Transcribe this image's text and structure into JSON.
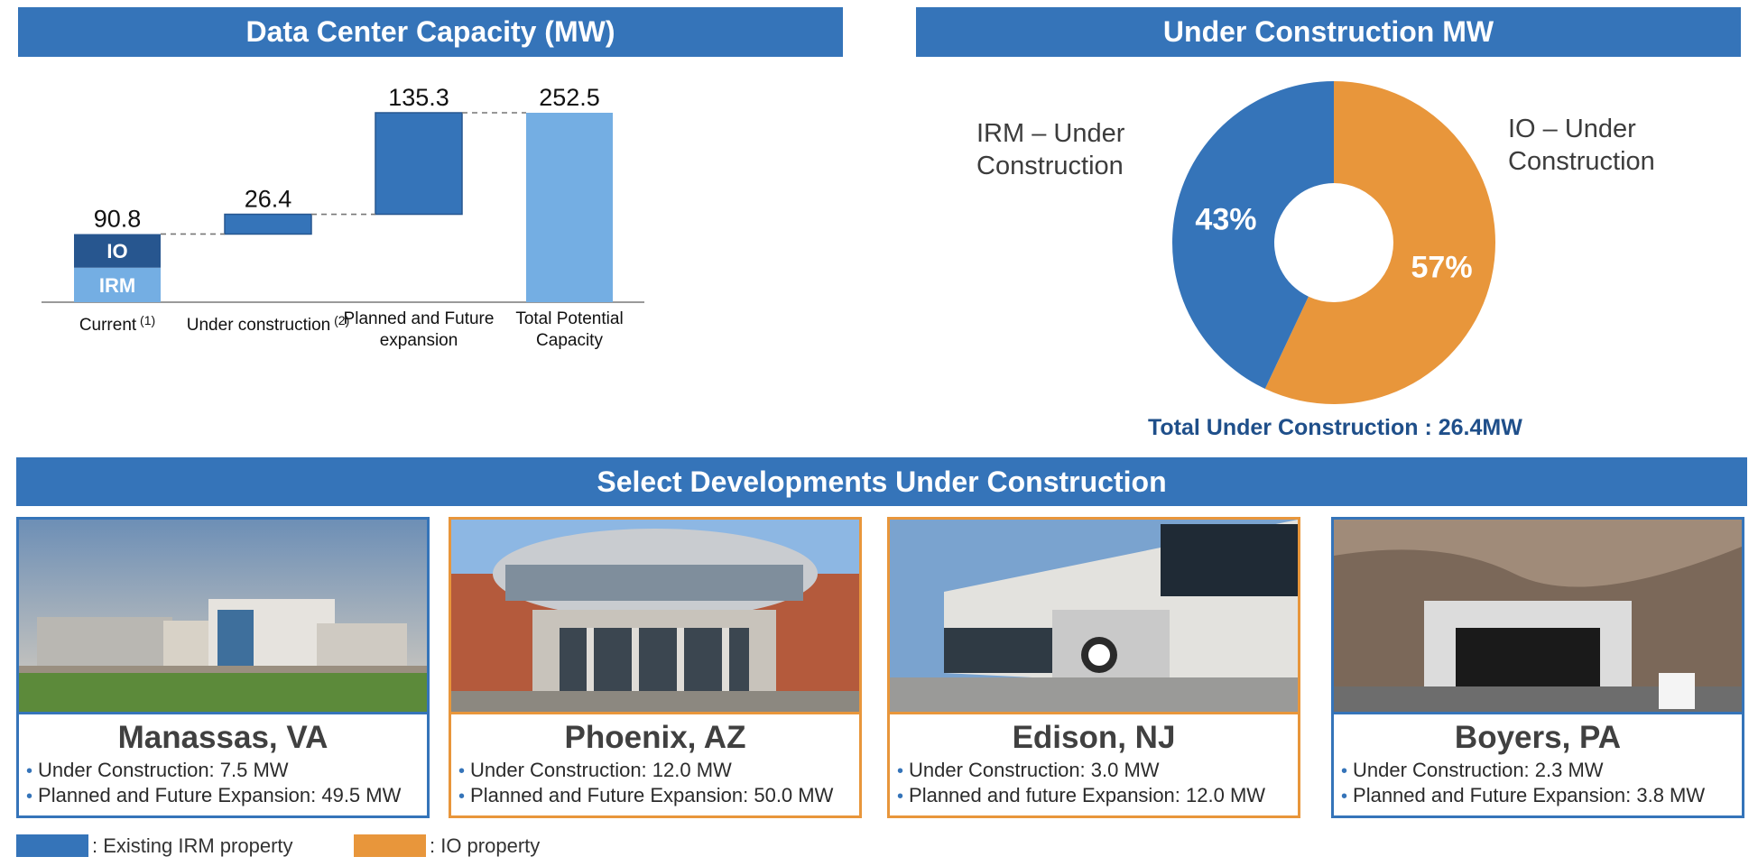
{
  "left_panel": {
    "title": "Data Center Capacity (MW)"
  },
  "right_panel": {
    "title": "Under Construction MW",
    "irm_label_1": "IRM – Under",
    "irm_label_2": "Construction",
    "io_label_1": "IO – Under",
    "io_label_2": "Construction",
    "total": "Total Under Construction : 26.4MW"
  },
  "developments": {
    "title": "Select Developments Under Construction",
    "cards": [
      {
        "city": "Manassas, VA",
        "owner": "IRM",
        "line1": "Under Construction: 7.5 MW",
        "line2": "Planned and Future Expansion: 49.5 MW"
      },
      {
        "city": "Phoenix, AZ",
        "owner": "IO",
        "line1": "Under Construction: 12.0 MW",
        "line2": "Planned and Future Expansion: 50.0 MW"
      },
      {
        "city": "Edison, NJ",
        "owner": "IO",
        "line1": "Under Construction: 3.0 MW",
        "line2": "Planned and future Expansion: 12.0 MW"
      },
      {
        "city": "Boyers, PA",
        "owner": "IRM",
        "line1": "Under Construction: 2.3 MW",
        "line2": "Planned and Future Expansion: 3.8 MW"
      }
    ]
  },
  "legend": {
    "irm": ": Existing IRM property",
    "io": ": IO property",
    "irm_color": "#3574b9",
    "io_color": "#e8963b"
  },
  "chart_data": [
    {
      "type": "bar",
      "subtype": "waterfall",
      "title": "Data Center Capacity (MW)",
      "categories": [
        "Current",
        "Under construction",
        "Planned and Future expansion",
        "Total Potential Capacity"
      ],
      "category_labels": [
        {
          "line1": "Current",
          "sup": "(1)"
        },
        {
          "line1": "Under construction",
          "sup": "(2)"
        },
        {
          "line1": "Planned and Future",
          "line2": "expansion"
        },
        {
          "line1": "Total Potential",
          "line2": "Capacity"
        }
      ],
      "values": [
        90.8,
        26.4,
        135.3,
        252.5
      ],
      "value_labels": [
        "90.8",
        "26.4",
        "135.3",
        "252.5"
      ],
      "current_split": [
        {
          "name": "IRM",
          "value": 46
        },
        {
          "name": "IO",
          "value": 44.8
        }
      ],
      "ylim": [
        0,
        260
      ],
      "colors": {
        "io": "#27568f",
        "irm": "#74aee3",
        "step": "#3574b9",
        "total": "#74aee3"
      }
    },
    {
      "type": "pie",
      "subtype": "donut",
      "title": "Under Construction MW",
      "labels": [
        "IRM – Under Construction",
        "IO – Under Construction"
      ],
      "values": [
        43,
        57
      ],
      "value_labels": [
        "43%",
        "57%"
      ],
      "colors": [
        "#3574b9",
        "#e8963b"
      ]
    }
  ]
}
